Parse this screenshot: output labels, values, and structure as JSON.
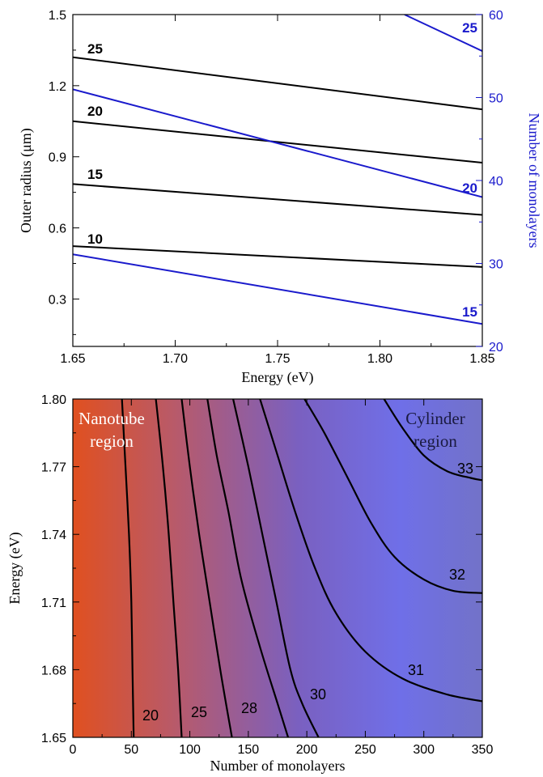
{
  "chart_data": [
    {
      "type": "line",
      "xlabel": "Energy (eV)",
      "ylabel": "Outer radius (μm)",
      "y2label": "Number of monolayers",
      "xlim": [
        1.65,
        1.85
      ],
      "ylim": [
        0.1,
        1.5
      ],
      "y2lim": [
        20,
        60
      ],
      "xticks": [
        "1.65",
        "1.70",
        "1.75",
        "1.80",
        "1.85"
      ],
      "yticks": [
        "0.3",
        "0.6",
        "0.9",
        "1.2",
        "1.5"
      ],
      "y2ticks": [
        "20",
        "30",
        "40",
        "50",
        "60"
      ],
      "black_color": "#000000",
      "blue_color": "#1a1acc",
      "series": [
        {
          "name": "10",
          "axis": "left",
          "color": "#000000",
          "x": [
            1.65,
            1.85
          ],
          "y": [
            0.523,
            0.435
          ]
        },
        {
          "name": "15",
          "axis": "left",
          "color": "#000000",
          "x": [
            1.65,
            1.85
          ],
          "y": [
            0.785,
            0.655
          ]
        },
        {
          "name": "20",
          "axis": "left",
          "color": "#000000",
          "x": [
            1.65,
            1.85
          ],
          "y": [
            1.05,
            0.875
          ]
        },
        {
          "name": "25",
          "axis": "left",
          "color": "#000000",
          "x": [
            1.65,
            1.85
          ],
          "y": [
            1.32,
            1.1
          ]
        },
        {
          "name": "15",
          "axis": "right",
          "color": "#1a1acc",
          "x": [
            1.65,
            1.85
          ],
          "y": [
            31.1,
            22.7
          ]
        },
        {
          "name": "20",
          "axis": "right",
          "color": "#1a1acc",
          "x": [
            1.65,
            1.85
          ],
          "y": [
            51.0,
            38.0
          ]
        },
        {
          "name": "25",
          "axis": "right",
          "color": "#1a1acc",
          "x": [
            1.812,
            1.85
          ],
          "y": [
            60.0,
            55.6
          ]
        }
      ]
    },
    {
      "type": "heatmap",
      "xlabel": "Number of monolayers",
      "ylabel": "Energy (eV)",
      "xlim": [
        0,
        350
      ],
      "ylim": [
        1.65,
        1.8
      ],
      "xticks": [
        "0",
        "50",
        "100",
        "150",
        "200",
        "250",
        "300",
        "350"
      ],
      "yticks": [
        "1.65",
        "1.68",
        "1.71",
        "1.74",
        "1.77",
        "1.80"
      ],
      "colormap": [
        "#e05020",
        "#b85a6a",
        "#7a60c0",
        "#6f6fe8",
        "#7272c8"
      ],
      "region_labels": [
        {
          "text_lines": [
            "Nanotube",
            "region"
          ],
          "color": "#ffffff"
        },
        {
          "text_lines": [
            "Cylinder",
            "region"
          ],
          "color": "#1a1a40"
        }
      ],
      "contours": [
        {
          "label": "20",
          "points": [
            [
              42,
              1.8
            ],
            [
              45,
              1.77
            ],
            [
              48,
              1.74
            ],
            [
              50,
              1.71
            ],
            [
              51,
              1.68
            ],
            [
              52,
              1.65
            ]
          ]
        },
        {
          "label": "25",
          "points": [
            [
              71,
              1.8
            ],
            [
              77,
              1.77
            ],
            [
              82,
              1.74
            ],
            [
              86,
              1.71
            ],
            [
              90,
              1.68
            ],
            [
              93,
              1.65
            ]
          ]
        },
        {
          "label": "28",
          "points": [
            [
              93,
              1.8
            ],
            [
              100,
              1.77
            ],
            [
              108,
              1.74
            ],
            [
              117,
              1.71
            ],
            [
              126,
              1.68
            ],
            [
              136,
              1.65
            ]
          ]
        },
        {
          "label": "",
          "points": [
            [
              115,
              1.8
            ],
            [
              123,
              1.775
            ],
            [
              133,
              1.75
            ],
            [
              144,
              1.72
            ],
            [
              160,
              1.69
            ],
            [
              175,
              1.665
            ],
            [
              184,
              1.65
            ]
          ]
        },
        {
          "label": "30",
          "points": [
            [
              137,
              1.8
            ],
            [
              150,
              1.77
            ],
            [
              162,
              1.74
            ],
            [
              174,
              1.71
            ],
            [
              186,
              1.68
            ],
            [
              196,
              1.665
            ],
            [
              210,
              1.65
            ]
          ]
        },
        {
          "label": "31",
          "points": [
            [
              160,
              1.8
            ],
            [
              175,
              1.775
            ],
            [
              190,
              1.75
            ],
            [
              207,
              1.725
            ],
            [
              225,
              1.705
            ],
            [
              250,
              1.688
            ],
            [
              282,
              1.676
            ],
            [
              320,
              1.669
            ],
            [
              350,
              1.666
            ]
          ]
        },
        {
          "label": "32",
          "points": [
            [
              198,
              1.8
            ],
            [
              215,
              1.785
            ],
            [
              235,
              1.765
            ],
            [
              255,
              1.745
            ],
            [
              275,
              1.73
            ],
            [
              300,
              1.72
            ],
            [
              325,
              1.715
            ],
            [
              350,
              1.714
            ]
          ]
        },
        {
          "label": "33",
          "points": [
            [
              266,
              1.8
            ],
            [
              282,
              1.787
            ],
            [
              300,
              1.775
            ],
            [
              320,
              1.768
            ],
            [
              340,
              1.765
            ],
            [
              350,
              1.764
            ]
          ]
        }
      ]
    }
  ]
}
